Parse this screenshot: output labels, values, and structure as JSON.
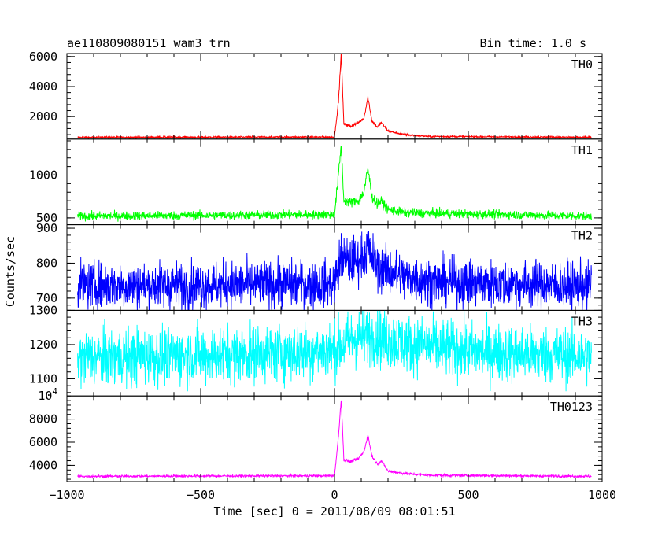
{
  "header": {
    "title": "ae110809080151_wam3_trn",
    "bin_time": "Bin time: 1.0 s"
  },
  "chart_data": {
    "type": "line",
    "xlabel": "Time [sec] 0 = 2011/08/09 08:01:51",
    "ylabel": "Counts/sec",
    "xlim": [
      -1000,
      1000
    ],
    "xticks": [
      -1000,
      -500,
      0,
      500,
      1000
    ],
    "xtick_labels": [
      "−1000",
      "−500",
      "0",
      "500",
      "1000"
    ],
    "data_range": [
      -960,
      960
    ],
    "panels": [
      {
        "name": "TH0",
        "color": "#ff0000",
        "ylim": [
          500,
          6200
        ],
        "yticks": [
          2000,
          4000,
          6000
        ],
        "ytick_labels": [
          "2000",
          "4000",
          "6000"
        ],
        "baseline": 620,
        "noise": 50,
        "key_points": [
          [
            -960,
            620
          ],
          [
            0,
            640
          ],
          [
            15,
            3000
          ],
          [
            25,
            6200
          ],
          [
            35,
            1500
          ],
          [
            60,
            1350
          ],
          [
            90,
            1600
          ],
          [
            110,
            1900
          ],
          [
            125,
            3300
          ],
          [
            140,
            1700
          ],
          [
            160,
            1300
          ],
          [
            175,
            1600
          ],
          [
            200,
            1050
          ],
          [
            260,
            800
          ],
          [
            350,
            680
          ],
          [
            960,
            620
          ]
        ]
      },
      {
        "name": "TH1",
        "color": "#00ff00",
        "ylim": [
          420,
          1420
        ],
        "yticks": [
          500,
          1000
        ],
        "ytick_labels": [
          "500",
          "1000"
        ],
        "baseline": 520,
        "noise": 45,
        "key_points": [
          [
            -960,
            520
          ],
          [
            0,
            540
          ],
          [
            15,
            1000
          ],
          [
            25,
            1350
          ],
          [
            35,
            700
          ],
          [
            60,
            680
          ],
          [
            90,
            700
          ],
          [
            110,
            800
          ],
          [
            125,
            1080
          ],
          [
            140,
            750
          ],
          [
            160,
            660
          ],
          [
            175,
            700
          ],
          [
            200,
            600
          ],
          [
            260,
            560
          ],
          [
            960,
            520
          ]
        ]
      },
      {
        "name": "TH2",
        "color": "#0000ff",
        "ylim": [
          665,
          910
        ],
        "yticks": [
          700,
          800,
          900
        ],
        "ytick_labels": [
          "700",
          "800",
          "900"
        ],
        "baseline": 735,
        "noise": 60,
        "key_points": [
          [
            -960,
            735
          ],
          [
            0,
            740
          ],
          [
            25,
            820
          ],
          [
            60,
            800
          ],
          [
            100,
            820
          ],
          [
            125,
            840
          ],
          [
            160,
            790
          ],
          [
            260,
            760
          ],
          [
            400,
            745
          ],
          [
            960,
            735
          ]
        ]
      },
      {
        "name": "TH3",
        "color": "#00ffff",
        "ylim": [
          1050,
          1300
        ],
        "yticks": [
          1100,
          1200,
          1300
        ],
        "ytick_labels": [
          "1100",
          "1200",
          "1300"
        ],
        "baseline": 1160,
        "noise": 75,
        "key_points": [
          [
            -960,
            1160
          ],
          [
            -200,
            1175
          ],
          [
            0,
            1185
          ],
          [
            60,
            1215
          ],
          [
            125,
            1225
          ],
          [
            260,
            1205
          ],
          [
            500,
            1180
          ],
          [
            960,
            1165
          ]
        ]
      },
      {
        "name": "TH0123",
        "color": "#ff00ff",
        "ylim": [
          2600,
          10000
        ],
        "yticks": [
          4000,
          6000,
          8000
        ],
        "ytick_labels": [
          "4000",
          "6000",
          "8000"
        ],
        "top_label": "10",
        "top_label_exp": "4",
        "baseline": 3050,
        "noise": 90,
        "key_points": [
          [
            -960,
            3050
          ],
          [
            0,
            3100
          ],
          [
            15,
            6500
          ],
          [
            25,
            9800
          ],
          [
            35,
            4500
          ],
          [
            60,
            4300
          ],
          [
            90,
            4600
          ],
          [
            110,
            5200
          ],
          [
            125,
            6600
          ],
          [
            140,
            4800
          ],
          [
            160,
            4100
          ],
          [
            175,
            4400
          ],
          [
            200,
            3500
          ],
          [
            260,
            3300
          ],
          [
            350,
            3150
          ],
          [
            960,
            3050
          ]
        ]
      }
    ]
  }
}
